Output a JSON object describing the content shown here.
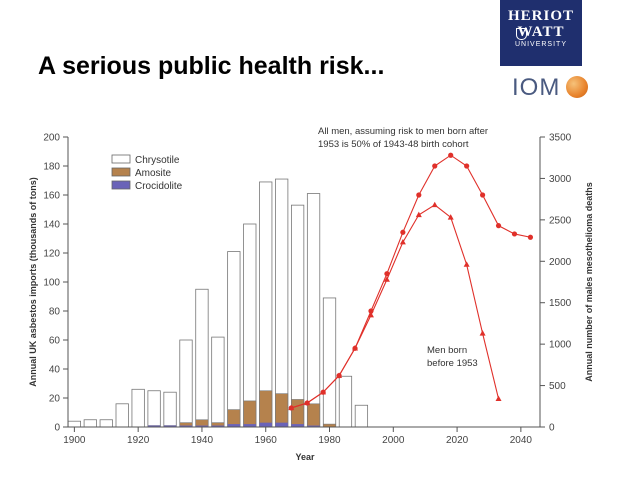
{
  "slide": {
    "title": "A serious public health risk..."
  },
  "logos": {
    "heriot_watt": {
      "line1": "HERIOT",
      "line2": "WATT",
      "line3": "UNIVERSITY"
    },
    "iom": {
      "text": "IOM"
    }
  },
  "colors": {
    "chrysotile": "#ffffff",
    "amosite": "#b5824d",
    "crocidolite": "#6a63b8",
    "line": "#e0302a",
    "title_bar": "#1f2f6e"
  },
  "chart_data": {
    "type": "bar+line",
    "xlabel": "Year",
    "ylabel_left": "Annual UK asbestos imports (thousands of tons)",
    "ylabel_right": "Annual number of males mesothelioma deaths",
    "xlim": [
      1898,
      2046
    ],
    "ylim_left": [
      0,
      200
    ],
    "ylim_right": [
      0,
      3500
    ],
    "x_ticks": [
      1900,
      1920,
      1940,
      1960,
      1980,
      2000,
      2020,
      2040
    ],
    "x_tick_labels": [
      "1900",
      "1920",
      "1940",
      "1960",
      "1980",
      "2000",
      "2020",
      "2040"
    ],
    "y_left_ticks": [
      0,
      20,
      40,
      60,
      80,
      100,
      120,
      140,
      160,
      180,
      200
    ],
    "y_left_tick_labels": [
      "0",
      "20",
      "40",
      "60",
      "80",
      "100",
      "120",
      "140",
      "160",
      "180",
      "200"
    ],
    "y_right_ticks": [
      0,
      500,
      1000,
      1500,
      2000,
      2500,
      3000,
      3500
    ],
    "y_right_tick_labels": [
      "0",
      "500",
      "1000",
      "1500",
      "2000",
      "2500",
      "3000",
      "3500"
    ],
    "legend": [
      "Chrysotile",
      "Amosite",
      "Crocidolite"
    ],
    "bars": {
      "years": [
        1900,
        1905,
        1910,
        1915,
        1920,
        1925,
        1930,
        1935,
        1940,
        1945,
        1950,
        1955,
        1960,
        1965,
        1970,
        1975,
        1980,
        1985
      ],
      "total": [
        4,
        5,
        5,
        16,
        26,
        25,
        24,
        60,
        95,
        62,
        121,
        140,
        169,
        171,
        153,
        161,
        89,
        35
      ],
      "amosite": [
        0,
        0,
        0,
        0,
        0,
        1,
        1,
        3,
        5,
        3,
        12,
        18,
        25,
        23,
        19,
        16,
        2,
        0
      ],
      "crocidolite": [
        0,
        0,
        0,
        0,
        0,
        1,
        1,
        1,
        1,
        1,
        2,
        2,
        3,
        3,
        2,
        1,
        0,
        0
      ]
    },
    "extra_bar": {
      "year": 1990,
      "total": 15
    },
    "series": [
      {
        "name": "All men, assuming risk to men born after 1953 is 50% of 1943-48 birth cohort",
        "x": [
          1968,
          1973,
          1978,
          1983,
          1988,
          1993,
          1998,
          2003,
          2008,
          2013,
          2018,
          2023,
          2028,
          2033,
          2038,
          2043
        ],
        "y": [
          230,
          290,
          420,
          620,
          950,
          1400,
          1850,
          2350,
          2800,
          3150,
          3280,
          3150,
          2800,
          2430,
          2330,
          2290
        ]
      },
      {
        "name": "Men born before 1953",
        "x": [
          1968,
          1973,
          1978,
          1983,
          1988,
          1993,
          1998,
          2003,
          2008,
          2013,
          2018,
          2023,
          2028,
          2033
        ],
        "y": [
          230,
          290,
          420,
          620,
          950,
          1350,
          1780,
          2230,
          2560,
          2680,
          2530,
          1960,
          1130,
          340
        ]
      }
    ],
    "annotations": {
      "all_men_line1": "All men, assuming risk to men born after",
      "all_men_line2": "1953 is 50% of 1943-48 birth cohort",
      "born_before_line1": "Men born",
      "born_before_line2": "before 1953"
    }
  }
}
